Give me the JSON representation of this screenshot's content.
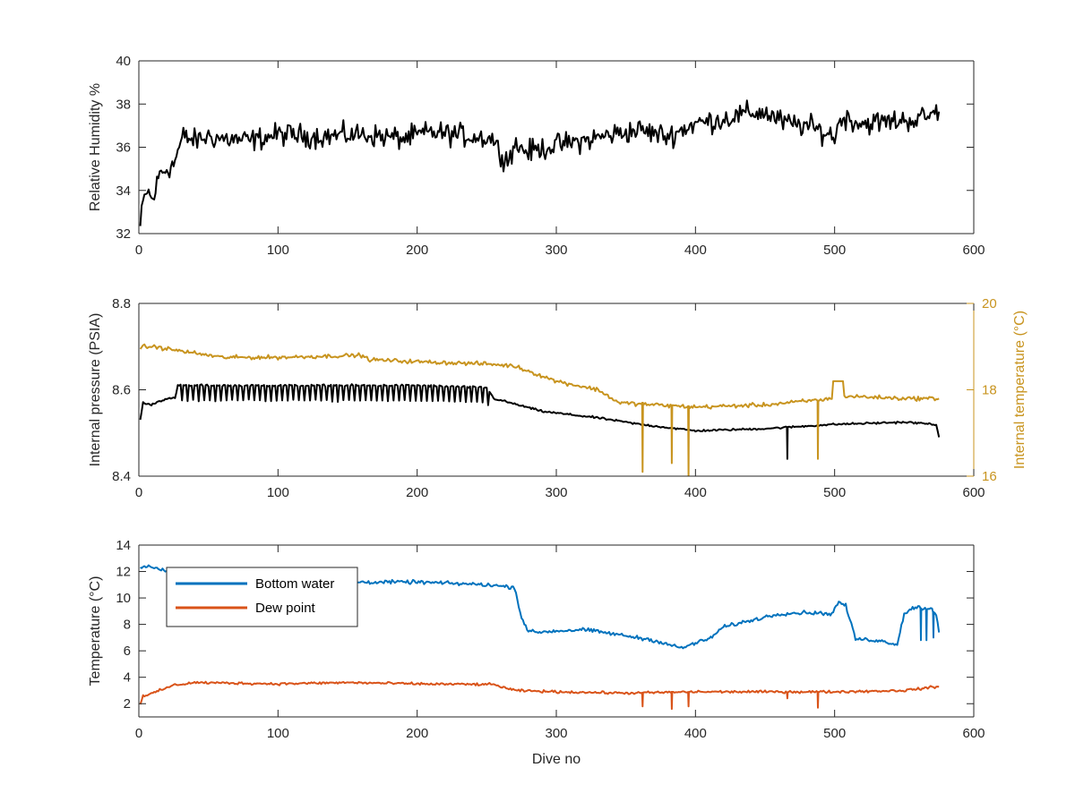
{
  "chart_data": [
    {
      "type": "line",
      "xlabel": "",
      "ylabel": "Relative Humidity %",
      "xlim": [
        0,
        600
      ],
      "ylim": [
        32,
        40
      ],
      "xticks": [
        0,
        100,
        200,
        300,
        400,
        500,
        600
      ],
      "yticks": [
        32,
        34,
        36,
        38,
        40
      ],
      "grid": false,
      "legend": "none",
      "series": [
        {
          "color": "#000000",
          "noise": 0.45,
          "x": [
            1,
            3,
            6,
            10,
            15,
            20,
            25,
            28,
            32,
            40,
            50,
            60,
            80,
            100,
            130,
            160,
            190,
            210,
            240,
            255,
            258,
            265,
            270,
            280,
            300,
            320,
            340,
            360,
            380,
            400,
            420,
            440,
            450,
            465,
            480,
            500,
            505,
            520,
            540,
            560,
            570,
            575
          ],
          "y": [
            32.3,
            33.4,
            34.0,
            33.5,
            34.8,
            35.0,
            35.2,
            35.8,
            36.5,
            36.3,
            36.5,
            36.4,
            36.3,
            36.6,
            36.5,
            36.6,
            36.4,
            36.7,
            36.5,
            36.4,
            35.9,
            35.4,
            36.1,
            35.8,
            36.1,
            36.3,
            36.6,
            36.8,
            36.5,
            37.1,
            37.3,
            37.6,
            37.6,
            37.1,
            37.0,
            36.5,
            37.4,
            37.1,
            37.2,
            37.3,
            37.5,
            37.8
          ]
        }
      ]
    },
    {
      "type": "line",
      "xlabel": "",
      "ylabel": "Internal pressure (PSIA)",
      "ylabel_right": "Internal temperature (°C)",
      "xlim": [
        0,
        600
      ],
      "ylim": [
        8.4,
        8.8
      ],
      "ylim_right": [
        16,
        20
      ],
      "xticks": [
        0,
        100,
        200,
        300,
        400,
        500,
        600
      ],
      "yticks": [
        8.4,
        8.6,
        8.8
      ],
      "yticks_right": [
        16,
        18,
        20
      ],
      "right_axis_color": "#c8941f",
      "grid": false,
      "legend": "none",
      "series": [
        {
          "axis": "left",
          "color": "#000000",
          "noise": 0.002,
          "x": [
            1,
            3,
            8,
            20,
            26,
            28,
            100,
            200,
            250,
            255,
            290,
            330,
            360,
            400,
            450,
            500,
            550,
            573,
            575
          ],
          "y": [
            8.53,
            8.57,
            8.565,
            8.58,
            8.58,
            8.61,
            8.61,
            8.61,
            8.605,
            8.58,
            8.55,
            8.535,
            8.52,
            8.505,
            8.51,
            8.52,
            8.525,
            8.52,
            8.49
          ],
          "oscillation": {
            "x0": 28,
            "x1": 252,
            "period": 4,
            "depth": 0.035
          },
          "spikes": [
            {
              "x": 466,
              "y": 8.44
            }
          ]
        },
        {
          "axis": "right",
          "color": "#c8941f",
          "noise": 0.04,
          "x": [
            1,
            3,
            10,
            20,
            40,
            60,
            100,
            160,
            165,
            200,
            250,
            270,
            300,
            330,
            345,
            400,
            450,
            500,
            510,
            550,
            575
          ],
          "y": [
            18.9,
            19.0,
            19.0,
            18.95,
            18.85,
            18.75,
            18.75,
            18.8,
            18.7,
            18.65,
            18.6,
            18.55,
            18.2,
            18.0,
            17.7,
            17.6,
            17.65,
            17.8,
            17.85,
            17.8,
            17.8
          ],
          "spikes": [
            {
              "x": 362,
              "y": 16.1
            },
            {
              "x": 383,
              "y": 16.3
            },
            {
              "x": 395,
              "y": 16.0
            },
            {
              "x": 488,
              "y": 16.4
            }
          ],
          "bump": {
            "x0": 499,
            "x1": 506,
            "y": 18.2
          }
        }
      ]
    },
    {
      "type": "line",
      "xlabel": "Dive no",
      "ylabel": "Temperature (°C)",
      "xlim": [
        0,
        600
      ],
      "ylim": [
        1,
        14
      ],
      "xticks": [
        0,
        100,
        200,
        300,
        400,
        500,
        600
      ],
      "yticks": [
        2,
        4,
        6,
        8,
        10,
        12,
        14
      ],
      "grid": false,
      "legend": "top-left",
      "series": [
        {
          "name": "Bottom water",
          "color": "#0072bd",
          "noise": 0.12,
          "x": [
            1,
            5,
            15,
            25,
            35,
            60,
            100,
            150,
            200,
            250,
            270,
            275,
            280,
            285,
            300,
            320,
            340,
            370,
            390,
            395,
            400,
            410,
            420,
            440,
            460,
            480,
            498,
            503,
            508,
            512,
            515,
            530,
            545,
            550,
            555,
            560,
            565,
            570,
            573,
            575
          ],
          "y": [
            12.3,
            12.4,
            12.2,
            11.8,
            11.6,
            11.5,
            11.3,
            11.2,
            11.2,
            11.0,
            10.8,
            8.5,
            7.5,
            7.4,
            7.5,
            7.6,
            7.3,
            6.8,
            6.2,
            6.4,
            6.6,
            6.9,
            7.8,
            8.3,
            8.8,
            8.9,
            8.8,
            9.7,
            9.4,
            8.0,
            6.9,
            6.8,
            6.5,
            8.8,
            9.2,
            9.3,
            9.2,
            9.2,
            8.7,
            7.5
          ],
          "spikes": [
            {
              "x": 562,
              "y": 6.8
            },
            {
              "x": 566,
              "y": 6.8
            },
            {
              "x": 571,
              "y": 7.0
            }
          ]
        },
        {
          "name": "Dew point",
          "color": "#d95319",
          "noise": 0.08,
          "x": [
            1,
            3,
            8,
            15,
            25,
            40,
            100,
            150,
            200,
            255,
            270,
            300,
            350,
            400,
            450,
            500,
            550,
            575
          ],
          "y": [
            2.0,
            2.6,
            2.7,
            3.0,
            3.4,
            3.6,
            3.5,
            3.6,
            3.5,
            3.45,
            3.0,
            2.9,
            2.8,
            2.9,
            2.9,
            2.9,
            3.0,
            3.3
          ],
          "spikes": [
            {
              "x": 362,
              "y": 1.8
            },
            {
              "x": 383,
              "y": 1.6
            },
            {
              "x": 395,
              "y": 1.8
            },
            {
              "x": 466,
              "y": 2.4
            },
            {
              "x": 488,
              "y": 1.7
            }
          ]
        }
      ]
    }
  ]
}
